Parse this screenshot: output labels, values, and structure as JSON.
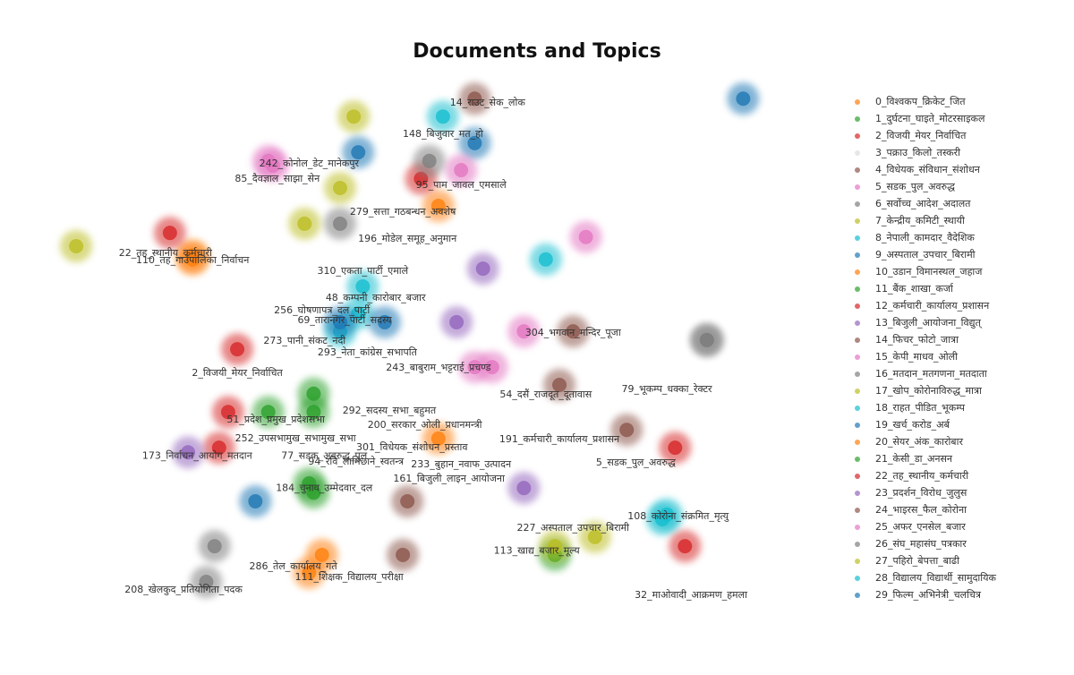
{
  "chart_data": {
    "type": "scatter",
    "title": "Documents and Topics",
    "xlim": [
      0,
      100
    ],
    "ylim": [
      0,
      100
    ],
    "series": [
      {
        "name": "0_विश्वकप_क्रिकेट_जित",
        "color": "#ff7f0e",
        "x": [
          31.4,
          16,
          48.5
        ],
        "values": [
          5.3,
          67.5,
          77.2
        ]
      },
      {
        "name": "1_दुर्घटना_घाइते_मोटरसाइकल",
        "color": "#2ca02c",
        "x": [
          26,
          32,
          63.9
        ],
        "values": [
          36.8,
          21,
          8.8
        ]
      },
      {
        "name": "2_विजयी_मेयर_निर्वाचित",
        "color": "#d62728",
        "x": [
          21.9,
          20.7,
          19.5
        ],
        "values": [
          49.1,
          36.8,
          29.8
        ]
      },
      {
        "name": "3_पक्राउ_किलो_तस्करी",
        "color": "#9467bd",
        "visible": false
      },
      {
        "name": "4_विधेयक_संविधान_संशोधन",
        "color": "#8c564b",
        "x": [
          44.4,
          43.8,
          64.5
        ],
        "values": [
          19.3,
          8.8,
          42.1
        ]
      },
      {
        "name": "5_सडक_पुल_अवरुद्ध",
        "color": "#e377c2",
        "x": [
          53.3,
          59.8,
          26.6
        ],
        "values": [
          45.6,
          52.6,
          85.1
        ]
      },
      {
        "name": "6_सर्वोच्च_आदेश_अदालत",
        "color": "#7f7f7f",
        "x": [
          18.9,
          35.5
        ],
        "values": [
          10.5,
          73.7
        ]
      },
      {
        "name": "7_केन्द्रीय_कमिटी_स्थायी",
        "color": "#bcbd22",
        "x": [
          37.3,
          30.8,
          69.2
        ],
        "values": [
          94.7,
          73.7,
          12.3
        ]
      },
      {
        "name": "8_नेपाली_कामदार_वैदेशिक",
        "color": "#17becf",
        "x": [
          38.5,
          49.1,
          78.1
        ],
        "values": [
          61.4,
          94.7,
          15.8
        ]
      },
      {
        "name": "9_अस्पताल_उपचार_बिरामी",
        "color": "#1f77b4",
        "x": [
          88.8,
          24.3,
          53.3
        ],
        "values": [
          98.2,
          19.3,
          89.5
        ]
      },
      {
        "name": "10_उडान_विमानस्थल_जहाज",
        "color": "#ff7f0e",
        "x": [
          48.5,
          33.1
        ],
        "values": [
          31.6,
          8.8
        ]
      },
      {
        "name": "11_बैंक_शाखा_कर्जा",
        "color": "#2ca02c",
        "x": [
          31.4,
          32
        ],
        "values": [
          22.8,
          36.8
        ]
      },
      {
        "name": "12_कर्मचारी_कार्यालय_प्रशासन",
        "color": "#d62728",
        "x": [
          81.1,
          79.8,
          46.2
        ],
        "values": [
          10.5,
          29.8,
          82.5
        ]
      },
      {
        "name": "13_बिजुली_आयोजना_विद्युत्",
        "color": "#9467bd",
        "x": [
          50.9,
          54.4
        ],
        "values": [
          54.4,
          64.9
        ]
      },
      {
        "name": "14_फिचर_फोटो_जात्रा",
        "color": "#8c564b",
        "x": [
          53.3,
          66.3
        ],
        "values": [
          98.2,
          52.6
        ]
      },
      {
        "name": "15_केपी_माधव_ओली",
        "color": "#e377c2",
        "x": [
          55.6,
          68
        ],
        "values": [
          45.6,
          71.1
        ]
      },
      {
        "name": "16_मतदान_मतगणना_मतदाता",
        "color": "#7f7f7f",
        "x": [
          84,
          47.3
        ],
        "values": [
          50.9,
          86
        ]
      },
      {
        "name": "17_खोप_कोरोनाविरुद्ध_मात्रा",
        "color": "#bcbd22",
        "x": [
          0.6,
          35.5
        ],
        "values": [
          69.3,
          80.7
        ]
      },
      {
        "name": "18_राहत_पीडित_भूकम्प",
        "color": "#17becf",
        "x": [
          62.7,
          37.9
        ],
        "values": [
          66.7,
          56.1
        ]
      },
      {
        "name": "19_खर्च_करोड_अर्ब",
        "color": "#1f77b4",
        "x": [
          41.4,
          37.9
        ],
        "values": [
          54.4,
          87.7
        ]
      },
      {
        "name": "20_सेयर_अंक_कारोबार",
        "color": "#ff7f0e",
        "x": [
          16
        ],
        "values": [
          66.7
        ]
      },
      {
        "name": "21_केसी_डा_अनसन",
        "color": "#2ca02c",
        "x": [
          32
        ],
        "values": [
          40.4
        ]
      },
      {
        "name": "22_तह_स्थानीय_कर्मचारी",
        "color": "#d62728",
        "x": [
          13
        ],
        "values": [
          71.9
        ]
      },
      {
        "name": "23_प्रदर्शन_विरोध_जुलुस",
        "color": "#9467bd",
        "x": [
          59.8,
          15.4
        ],
        "values": [
          21.9,
          28.9
        ]
      },
      {
        "name": "24_भाइरस_फैल_कोरोना",
        "color": "#8c564b",
        "x": [
          73.4
        ],
        "values": [
          33.3
        ]
      },
      {
        "name": "25_अफर_एनसेल_बजार",
        "color": "#e377c2",
        "x": [
          26,
          51.5
        ],
        "values": [
          86,
          84.2
        ]
      },
      {
        "name": "26_संघ_महासंघ_पत्रकार",
        "color": "#7f7f7f",
        "x": [
          17.8,
          84
        ],
        "values": [
          3.5,
          50.9
        ]
      },
      {
        "name": "27_पहिरो_बेपत्ता_बाढी",
        "color": "#bcbd22",
        "x": [
          63.9
        ],
        "values": [
          10.5
        ]
      },
      {
        "name": "28_विद्यालय_विद्यार्थी_सामुदायिक",
        "color": "#17becf",
        "x": [
          35.5,
          78.7
        ],
        "values": [
          52.6,
          16.7
        ]
      },
      {
        "name": "29_फिल्म_अभिनेत्री_चलचित्र",
        "color": "#1f77b4",
        "x": [
          35.5
        ],
        "values": [
          54.4
        ]
      }
    ],
    "annotations": [
      {
        "text": "14_राउट_सेक_लोक",
        "x": 55.0,
        "y": 97.4
      },
      {
        "text": "148_बिजुवार_मत_हो",
        "x": 49.1,
        "y": 91.2
      },
      {
        "text": "85_दैवज्ञाल_साझा_सेन",
        "x": 27.2,
        "y": 82.5
      },
      {
        "text": "242_कोनोल_डेट_मानेकपुर",
        "x": 31.4,
        "y": 85.4
      },
      {
        "text": "95_पाम_जावल_एमसाले",
        "x": 51.5,
        "y": 81.2
      },
      {
        "text": "279_सत्ता_गठबन्धन_अवशेष",
        "x": 43.8,
        "y": 76.0
      },
      {
        "text": "196_मोडेल_समूह_अनुमान",
        "x": 44.4,
        "y": 70.7
      },
      {
        "text": "22_तह_स्थानीय_कर्मचारी",
        "x": 12.4,
        "y": 67.9
      },
      {
        "text": "110_तह_गाउँपालिका_निर्वाचन",
        "x": 16.0,
        "y": 66.5
      },
      {
        "text": "310_एकता_पार्टी_एमाले",
        "x": 38.5,
        "y": 64.4
      },
      {
        "text": "48_कम्पनी_कारोबार_बजार",
        "x": 40.2,
        "y": 59.1
      },
      {
        "text": "256_घोषणापत्र_दल_पार्टी",
        "x": 33.1,
        "y": 56.7
      },
      {
        "text": "69_तारानगर_पार्टी_सदस्य",
        "x": 36.1,
        "y": 54.7
      },
      {
        "text": "273_पानी_संकट_नदी",
        "x": 30.8,
        "y": 50.7
      },
      {
        "text": "293_नेता_कांग्रेस_सभापति",
        "x": 39.1,
        "y": 48.4
      },
      {
        "text": "304_भगवान_मन्दिर_पूजा",
        "x": 66.3,
        "y": 52.3
      },
      {
        "text": "243_बाबुराम_भट्टराई_प्रचण्ड",
        "x": 48.5,
        "y": 45.4
      },
      {
        "text": "2_विजयी_मेयर_निर्वाचित",
        "x": 21.9,
        "y": 44.4
      },
      {
        "text": "79_भूकम्प_धक्का_रेक्टर",
        "x": 78.7,
        "y": 41.2
      },
      {
        "text": "54_दसैं_राजदूत_दूतावास",
        "x": 62.7,
        "y": 40.2
      },
      {
        "text": "292_सदस्य_सभा_बहुमत",
        "x": 42.0,
        "y": 37.0
      },
      {
        "text": "51_प्रदेश_प्रमुख_प्रदेशसभा",
        "x": 27.0,
        "y": 35.3
      },
      {
        "text": "200_सरकार_ओली_प्रधानमन्त्री",
        "x": 46.7,
        "y": 34.2
      },
      {
        "text": "252_उपसभामुख_सभामुख_सभा",
        "x": 29.6,
        "y": 31.6
      },
      {
        "text": "191_कर्मचारी_कार्यालय_प्रशासन",
        "x": 64.5,
        "y": 31.4
      },
      {
        "text": "301_विधेयक_संशोधन_प्रस्ताव",
        "x": 45.0,
        "y": 29.8
      },
      {
        "text": "173_निर्वाचन_आयोग_मतदान",
        "x": 16.6,
        "y": 28.2
      },
      {
        "text": "77_सडक_अवरुद्ध_पुल",
        "x": 33.4,
        "y": 28.2
      },
      {
        "text": "94_रवि_लामिछाने_स्वतन्त्र",
        "x": 37.6,
        "y": 27.0
      },
      {
        "text": "233_बुहान_नवाफ_उत्पादन",
        "x": 51.5,
        "y": 26.5
      },
      {
        "text": "5_सडक_पुल_अवरुद्ध",
        "x": 74.6,
        "y": 26.8
      },
      {
        "text": "161_बिजुली_लाइन_आयोजना",
        "x": 49.9,
        "y": 23.7
      },
      {
        "text": "184_चुनाव_उम्मेदवार_दल",
        "x": 33.4,
        "y": 21.8
      },
      {
        "text": "227_अस्पताल_उपचार_बिरामी",
        "x": 66.3,
        "y": 14.0
      },
      {
        "text": "108_कोरोना_संक्रमित_मृत्यु",
        "x": 80.2,
        "y": 16.3
      },
      {
        "text": "113_खाद्य_बजार_मूल्य",
        "x": 61.5,
        "y": 9.6
      },
      {
        "text": "286_तेल_कार्यालय_गते",
        "x": 29.3,
        "y": 6.5
      },
      {
        "text": "111_शिक्षक_विद्यालय_परीक्षा",
        "x": 36.7,
        "y": 4.4
      },
      {
        "text": "208_खेलकुद_प्रतियोगिता_पदक",
        "x": 14.8,
        "y": 1.9
      },
      {
        "text": "32_माओवादी_आक्रमण_हमला",
        "x": 81.9,
        "y": 0.9
      }
    ]
  }
}
